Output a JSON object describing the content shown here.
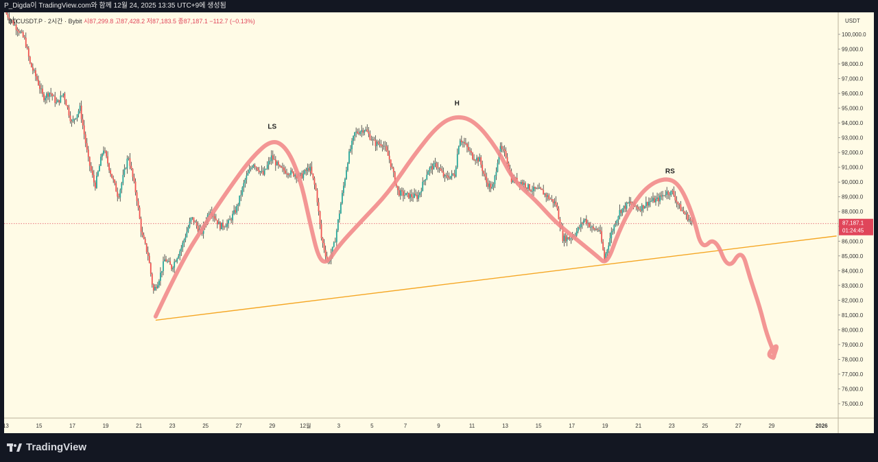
{
  "header": {
    "text": "P_Digda이 TradingView.com와 함께 12월 24, 2025 13:35 UTC+9에 생성됨"
  },
  "legend": {
    "symbol": "BTCUSDT.P",
    "interval": "2시간",
    "exchange": "Bybit",
    "open": "시87,299.8",
    "high": "고87,428.2",
    "low": "저87,183.5",
    "close": "종87,187.1",
    "change": "−112.7 (−0.13%)"
  },
  "axis_currency": "USDT",
  "price_tag": {
    "price": "87,187.1",
    "countdown": "01:24:45"
  },
  "brand": {
    "name": "TradingView"
  },
  "colors": {
    "background": "#fffbe6",
    "up_candle": "#26a69a",
    "down_candle": "#ef5350",
    "wick": "#333333",
    "pattern_stroke": "#f28b8b",
    "neckline": "#f5a623",
    "price_line": "#e0455a"
  },
  "chart_data": {
    "type": "candlestick",
    "title": "",
    "ylim": [
      74000,
      101000
    ],
    "y_ticks": [
      75000,
      76000,
      77000,
      78000,
      79000,
      80000,
      81000,
      82000,
      83000,
      84000,
      85000,
      86000,
      87000,
      88000,
      89000,
      90000,
      91000,
      92000,
      93000,
      94000,
      95000,
      96000,
      97000,
      98000,
      99000,
      100000
    ],
    "y_tick_labels": [
      "75,000.0",
      "76,000.0",
      "77,000.0",
      "78,000.0",
      "79,000.0",
      "80,000.0",
      "81,000.0",
      "82,000.0",
      "83,000.0",
      "84,000.0",
      "85,000.0",
      "86,000.0",
      "87,000.0",
      "88,000.0",
      "89,000.0",
      "90,000.0",
      "91,000.0",
      "92,000.0",
      "93,000.0",
      "94,000.0",
      "95,000.0",
      "96,000.0",
      "97,000.0",
      "98,000.0",
      "99,000.0",
      "100,000.0"
    ],
    "x_ticks": [
      {
        "day": 13,
        "label": "13"
      },
      {
        "day": 15,
        "label": "15"
      },
      {
        "day": 17,
        "label": "17"
      },
      {
        "day": 19,
        "label": "19"
      },
      {
        "day": 21,
        "label": "21"
      },
      {
        "day": 23,
        "label": "23"
      },
      {
        "day": 25,
        "label": "25"
      },
      {
        "day": 27,
        "label": "27"
      },
      {
        "day": 29,
        "label": "29"
      },
      {
        "day": 31,
        "label": "12월"
      },
      {
        "day": 33,
        "label": "3"
      },
      {
        "day": 35,
        "label": "5"
      },
      {
        "day": 37,
        "label": "7"
      },
      {
        "day": 39,
        "label": "9"
      },
      {
        "day": 41,
        "label": "11"
      },
      {
        "day": 43,
        "label": "13"
      },
      {
        "day": 45,
        "label": "15"
      },
      {
        "day": 47,
        "label": "17"
      },
      {
        "day": 49,
        "label": "19"
      },
      {
        "day": 51,
        "label": "21"
      },
      {
        "day": 53,
        "label": "23"
      },
      {
        "day": 55,
        "label": "25"
      },
      {
        "day": 57,
        "label": "27"
      },
      {
        "day": 59,
        "label": "29"
      },
      {
        "day": 62,
        "label": "2026"
      }
    ],
    "xlim": [
      12.9,
      63.0
    ],
    "price_keypoints": [
      [
        13.0,
        101500
      ],
      [
        13.8,
        100300
      ],
      [
        14.2,
        99600
      ],
      [
        14.5,
        98000
      ],
      [
        14.9,
        97000
      ],
      [
        15.3,
        95700
      ],
      [
        15.7,
        96100
      ],
      [
        16.1,
        95300
      ],
      [
        16.5,
        96000
      ],
      [
        17.0,
        94000
      ],
      [
        17.5,
        95000
      ],
      [
        18.0,
        91500
      ],
      [
        18.4,
        89700
      ],
      [
        18.9,
        92300
      ],
      [
        19.4,
        90400
      ],
      [
        19.8,
        89000
      ],
      [
        20.4,
        91800
      ],
      [
        20.9,
        89000
      ],
      [
        21.2,
        86500
      ],
      [
        21.6,
        85000
      ],
      [
        21.9,
        82600
      ],
      [
        22.2,
        83300
      ],
      [
        22.6,
        84800
      ],
      [
        23.0,
        84200
      ],
      [
        23.6,
        85600
      ],
      [
        24.2,
        87600
      ],
      [
        24.8,
        86500
      ],
      [
        25.3,
        88200
      ],
      [
        25.9,
        87000
      ],
      [
        26.4,
        87200
      ],
      [
        26.9,
        88200
      ],
      [
        27.4,
        90100
      ],
      [
        27.9,
        91300
      ],
      [
        28.5,
        90500
      ],
      [
        29.0,
        91700
      ],
      [
        29.5,
        90900
      ],
      [
        30.2,
        90600
      ],
      [
        30.8,
        90400
      ],
      [
        31.3,
        91000
      ],
      [
        31.7,
        89300
      ],
      [
        32.0,
        86200
      ],
      [
        32.4,
        84500
      ],
      [
        32.8,
        85900
      ],
      [
        33.2,
        88800
      ],
      [
        33.6,
        91600
      ],
      [
        34.0,
        93300
      ],
      [
        34.6,
        93600
      ],
      [
        35.2,
        92600
      ],
      [
        35.7,
        92600
      ],
      [
        36.1,
        91500
      ],
      [
        36.6,
        89300
      ],
      [
        37.1,
        89100
      ],
      [
        37.8,
        89000
      ],
      [
        38.4,
        90800
      ],
      [
        38.9,
        91200
      ],
      [
        39.4,
        90300
      ],
      [
        40.0,
        90500
      ],
      [
        40.3,
        93000
      ],
      [
        40.7,
        92400
      ],
      [
        41.1,
        91700
      ],
      [
        41.5,
        91500
      ],
      [
        41.9,
        90000
      ],
      [
        42.3,
        89500
      ],
      [
        42.7,
        92300
      ],
      [
        43.1,
        91800
      ],
      [
        43.4,
        90200
      ],
      [
        44.0,
        90000
      ],
      [
        44.6,
        89500
      ],
      [
        45.2,
        89400
      ],
      [
        45.6,
        89000
      ],
      [
        46.1,
        88500
      ],
      [
        46.5,
        86200
      ],
      [
        46.9,
        86200
      ],
      [
        47.3,
        86600
      ],
      [
        47.8,
        87500
      ],
      [
        48.3,
        86800
      ],
      [
        48.7,
        86800
      ],
      [
        49.0,
        84800
      ],
      [
        49.4,
        86500
      ],
      [
        49.9,
        88000
      ],
      [
        50.5,
        88600
      ],
      [
        51.1,
        88200
      ],
      [
        51.7,
        88700
      ],
      [
        52.2,
        88800
      ],
      [
        52.7,
        89300
      ],
      [
        53.1,
        89300
      ],
      [
        53.5,
        88300
      ],
      [
        54.0,
        87600
      ],
      [
        54.3,
        87200
      ]
    ],
    "annotations": [
      {
        "text": "LS",
        "x": 29.0,
        "y": 93600
      },
      {
        "text": "H",
        "x": 40.1,
        "y": 95200
      },
      {
        "text": "RS",
        "x": 52.9,
        "y": 90600
      }
    ],
    "pattern_path": [
      [
        22.0,
        80900
      ],
      [
        23.5,
        84500
      ],
      [
        25.0,
        87200
      ],
      [
        26.5,
        89700
      ],
      [
        27.8,
        91700
      ],
      [
        29.0,
        92900
      ],
      [
        29.9,
        92300
      ],
      [
        30.7,
        90200
      ],
      [
        31.3,
        87100
      ],
      [
        31.8,
        84800
      ],
      [
        32.3,
        84500
      ],
      [
        33.0,
        85700
      ],
      [
        34.4,
        87400
      ],
      [
        36.0,
        89300
      ],
      [
        37.5,
        91800
      ],
      [
        39.0,
        93900
      ],
      [
        40.1,
        94500
      ],
      [
        41.2,
        94100
      ],
      [
        42.5,
        92300
      ],
      [
        43.5,
        90100
      ],
      [
        44.8,
        88800
      ],
      [
        46.0,
        87300
      ],
      [
        47.3,
        86100
      ],
      [
        48.5,
        85000
      ],
      [
        49.1,
        84400
      ],
      [
        49.8,
        86600
      ],
      [
        50.6,
        88400
      ],
      [
        51.6,
        89800
      ],
      [
        52.7,
        90300
      ],
      [
        53.5,
        89800
      ],
      [
        54.3,
        87700
      ],
      [
        54.8,
        85400
      ],
      [
        55.6,
        86300
      ],
      [
        56.4,
        84000
      ],
      [
        57.2,
        85500
      ],
      [
        57.7,
        83500
      ],
      [
        58.3,
        81500
      ],
      [
        58.7,
        79700
      ],
      [
        59.3,
        78000
      ],
      [
        58.7,
        78300
      ],
      [
        59.4,
        79100
      ],
      [
        59.1,
        78100
      ]
    ],
    "neckline": {
      "x1": 22.0,
      "y1": 80650,
      "x2": 62.9,
      "y2": 86350
    },
    "current_price": 87187.1,
    "grid": false
  }
}
